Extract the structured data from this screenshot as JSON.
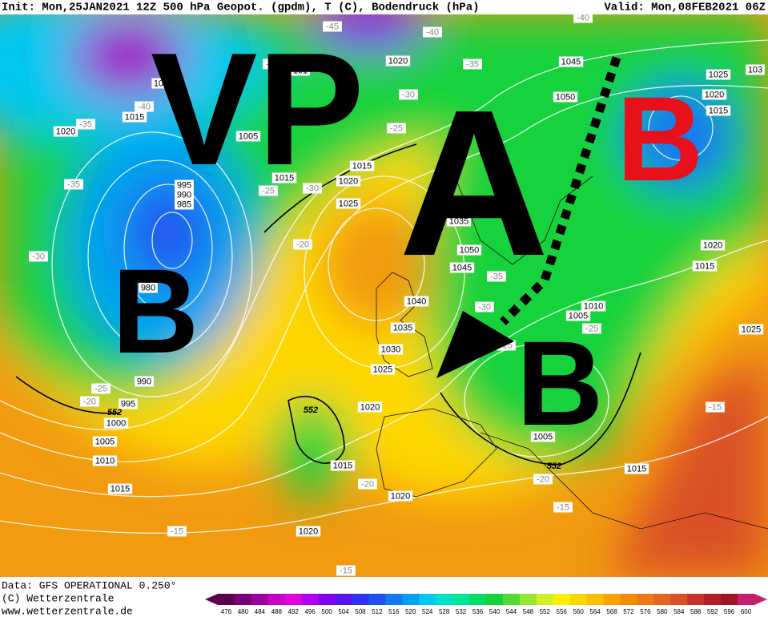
{
  "header": {
    "init": "Init: Mon,25JAN2021 12Z 500 hPa Geopot. (gpdm), T (C), Bodendruck (hPa)",
    "valid": "Valid: Mon,08FEB2021 06Z"
  },
  "annotations": {
    "vp": "VP",
    "a": "A",
    "b_west": "B",
    "b_central": "B",
    "b_north_east": "B"
  },
  "pressure_labels": [
    "1020",
    "1045",
    "1025",
    "103",
    "1020",
    "1015",
    "1050",
    "101",
    "10",
    "1015",
    "1020",
    "1005",
    "1015",
    "1015",
    "1020",
    "995",
    "990",
    "985",
    "1025",
    "1035",
    "1050",
    "1045",
    "980",
    "1040",
    "1010",
    "1005",
    "1035",
    "1020",
    "1015",
    "1025",
    "1030",
    "1025",
    "990",
    "995",
    "1000",
    "1020",
    "1005",
    "1010",
    "1005",
    "1015",
    "1015",
    "1015",
    "1020",
    "1020"
  ],
  "temperature_labels": [
    "-45",
    "-40",
    "-40",
    "-35",
    "-35",
    "-30",
    "-40",
    "-35",
    "-25",
    "-25",
    "-30",
    "-35",
    "-20",
    "-30",
    "-35",
    "-30",
    "-25",
    "-25",
    "-25",
    "-20",
    "-15",
    "-20",
    "-20",
    "-15",
    "-15",
    "-15"
  ],
  "height_labels": [
    "552",
    "552",
    "552"
  ],
  "footer": {
    "data": "Data: GFS OPERATIONAL 0.250°",
    "copyright": "(C) Wetterzentrale",
    "url": "www.wetterzentrale.de"
  },
  "colorbar": {
    "values": [
      476,
      480,
      484,
      488,
      492,
      496,
      500,
      504,
      508,
      512,
      516,
      520,
      524,
      528,
      532,
      536,
      540,
      544,
      548,
      552,
      556,
      560,
      564,
      568,
      572,
      576,
      580,
      584,
      588,
      592,
      596,
      600
    ],
    "colors": [
      "#5a0050",
      "#7a007a",
      "#a000a0",
      "#c800c8",
      "#e000e0",
      "#b000f0",
      "#8000f0",
      "#5a14f0",
      "#3030f0",
      "#2050f0",
      "#1478f0",
      "#00a0f0",
      "#00c8f0",
      "#00e0c8",
      "#00e696",
      "#00dc64",
      "#14d23c",
      "#50dc32",
      "#96e632",
      "#d2f028",
      "#fff000",
      "#ffd700",
      "#ffbe00",
      "#ffa000",
      "#f58c00",
      "#ee7814",
      "#e6641e",
      "#dc5028",
      "#c83228",
      "#b41e28",
      "#a01428",
      "#c81e6e"
    ]
  }
}
